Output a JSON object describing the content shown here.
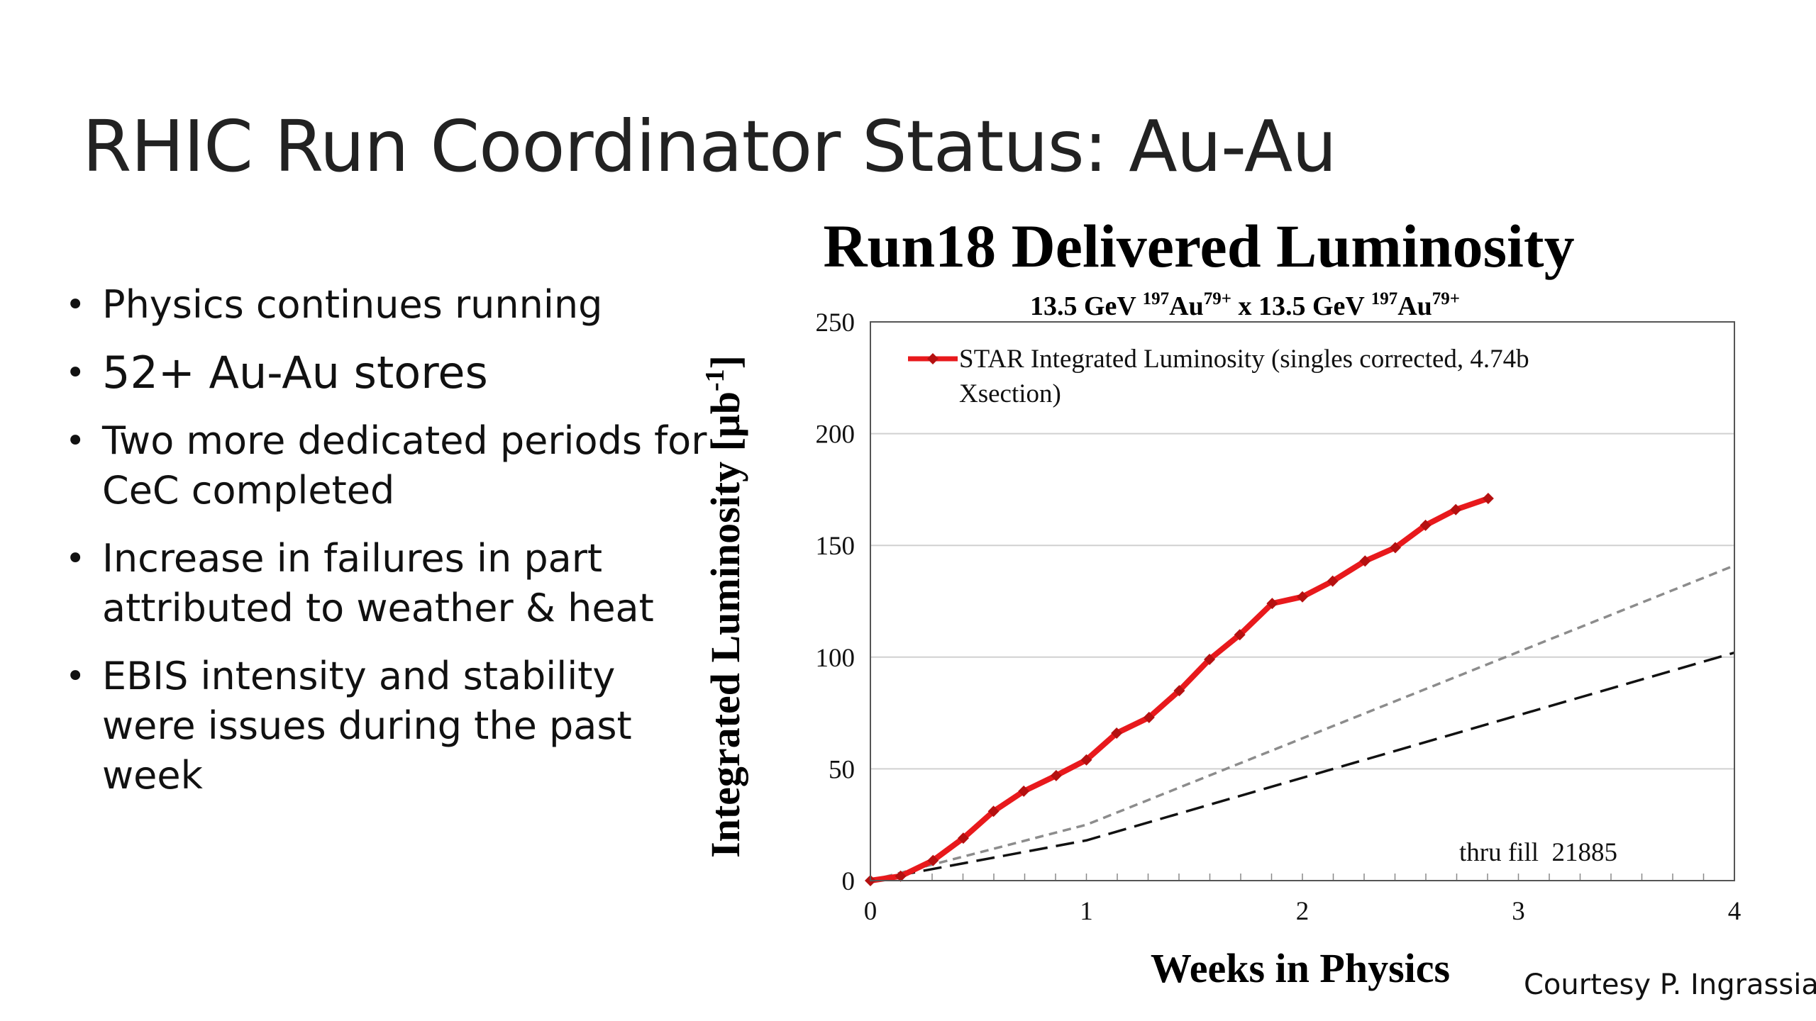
{
  "slide": {
    "title": "RHIC Run Coordinator Status: Au-Au",
    "credit": "Courtesy P. Ingrassia"
  },
  "bullets": [
    "Physics continues running",
    "52+ Au-Au stores",
    "Two more dedicated periods for CeC completed",
    "Increase in failures in part attributed to weather & heat",
    "EBIS intensity and stability were issues during the past week"
  ],
  "chart_data": {
    "type": "line",
    "title": "Run18 Delivered Luminosity",
    "subtitle": {
      "beam_energy": "13.5 GeV ",
      "mass_number": "197",
      "element": "Au",
      "charge": "79+",
      "separator": " x "
    },
    "xlabel": "Weeks in Physics",
    "ylabel": "Integrated Luminosity [μb",
    "ylabel_exponent": "-1",
    "ylabel_close": "]",
    "xlim": [
      0,
      4
    ],
    "ylim": [
      0,
      250
    ],
    "xticks": [
      0,
      1,
      2,
      3,
      4
    ],
    "yticks": [
      0,
      50,
      100,
      150,
      200,
      250
    ],
    "grid": "horizontal",
    "legend_position": "top-left",
    "annotation": "thru fill  21885",
    "series": [
      {
        "name": "STAR Integrated Luminosity (singles corrected, 4.74b Xsection)",
        "color": "#e8191c",
        "marker": "diamond",
        "x": [
          0,
          0.14,
          0.29,
          0.43,
          0.57,
          0.71,
          0.86,
          1.0,
          1.14,
          1.29,
          1.43,
          1.57,
          1.71,
          1.86,
          2.0,
          2.14,
          2.29,
          2.43,
          2.57,
          2.71,
          2.86
        ],
        "values": [
          0,
          2,
          9,
          19,
          31,
          40,
          47,
          54,
          66,
          73,
          85,
          99,
          110,
          124,
          127,
          134,
          143,
          149,
          159,
          166,
          171
        ]
      },
      {
        "name": "",
        "color": "#8c8c8c",
        "dash": "short",
        "x": [
          0,
          1,
          4
        ],
        "values": [
          0,
          25,
          141
        ]
      },
      {
        "name": "",
        "color": "#111111",
        "dash": "long",
        "x": [
          0,
          1,
          4
        ],
        "values": [
          0,
          18,
          102
        ]
      }
    ]
  }
}
